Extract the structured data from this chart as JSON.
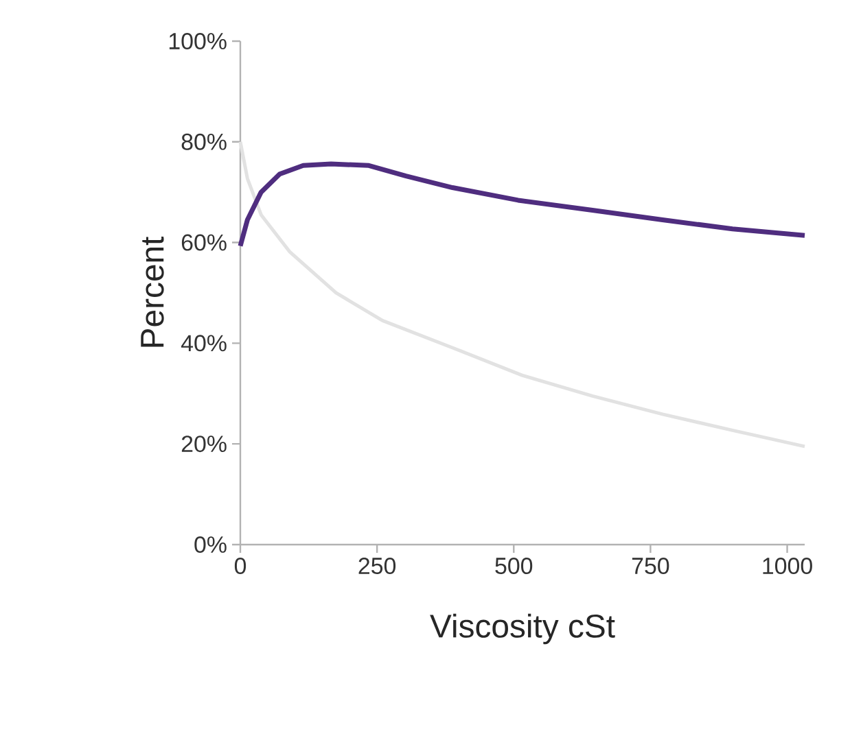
{
  "chart_data": {
    "type": "line",
    "xlabel": "Viscosity cSt",
    "ylabel": "Percent",
    "xlim": [
      0,
      1032
    ],
    "ylim": [
      0,
      100
    ],
    "xticks": [
      0,
      250,
      500,
      750,
      1000
    ],
    "yticks": [
      {
        "value": 0,
        "label": "0%"
      },
      {
        "value": 20,
        "label": "20%"
      },
      {
        "value": 40,
        "label": "40%"
      },
      {
        "value": 60,
        "label": "60%"
      },
      {
        "value": 80,
        "label": "80%"
      },
      {
        "value": 100,
        "label": "100%"
      }
    ],
    "marker": "none",
    "line_style": "solid",
    "series": [
      {
        "color": "#e2e2e2",
        "x": [
          0,
          13,
          38,
          90,
          175,
          260,
          388,
          516,
          644,
          772,
          900,
          1032
        ],
        "values": [
          80,
          72.7,
          65.5,
          58.2,
          50,
          44.5,
          39.1,
          33.6,
          29.5,
          25.9,
          22.7,
          19.5
        ]
      },
      {
        "color": "#4f2d7f",
        "x": [
          0,
          13,
          38,
          72,
          115,
          166,
          235,
          303,
          388,
          508,
          644,
          772,
          900,
          1032
        ],
        "values": [
          59.3,
          64.5,
          70,
          73.6,
          75.3,
          75.6,
          75.3,
          73.2,
          70.9,
          68.4,
          66.4,
          64.5,
          62.7,
          61.4
        ]
      }
    ]
  }
}
